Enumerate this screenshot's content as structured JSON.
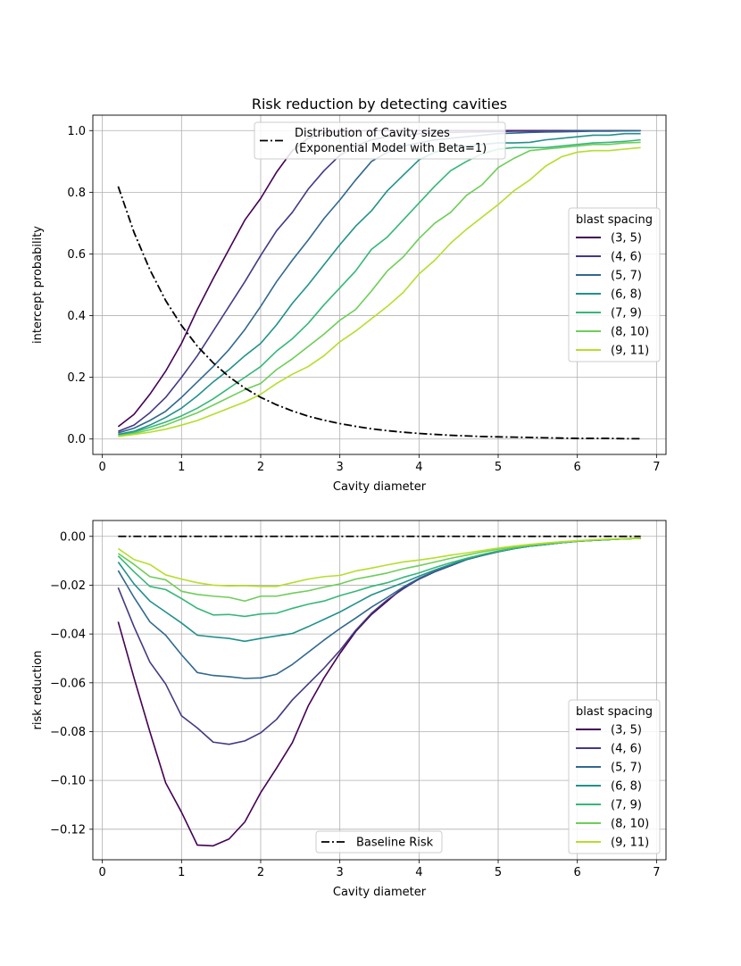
{
  "chart_data": [
    {
      "type": "line",
      "title": "Risk reduction by detecting cavities",
      "xlabel": "Cavity diameter",
      "ylabel": "intercept probability",
      "xlim": [
        -0.12,
        7.12
      ],
      "ylim": [
        -0.05,
        1.05
      ],
      "xticks": [
        "0",
        "1",
        "2",
        "3",
        "4",
        "5",
        "6",
        "7"
      ],
      "yticks": [
        "0.0",
        "0.2",
        "0.4",
        "0.6",
        "0.8",
        "1.0"
      ],
      "grid": true,
      "x": [
        0.2,
        0.4,
        0.6,
        0.8,
        1.0,
        1.2,
        1.4,
        1.6,
        1.8,
        2.0,
        2.2,
        2.4,
        2.6,
        2.8,
        3.0,
        3.2,
        3.4,
        3.6,
        3.8,
        4.0,
        4.2,
        4.4,
        4.6,
        4.8,
        5.0,
        5.2,
        5.4,
        5.6,
        5.8,
        6.0,
        6.2,
        6.4,
        6.6,
        6.8
      ],
      "legend_title": "blast spacing",
      "legend_position": "center-right",
      "overlay_legend": "upper-center",
      "series": [
        {
          "name": "(3, 5)",
          "color": "#440154",
          "values": [
            0.04,
            0.08,
            0.145,
            0.22,
            0.31,
            0.42,
            0.52,
            0.615,
            0.71,
            0.78,
            0.865,
            0.935,
            0.975,
            0.992,
            0.997,
            0.999,
            1.0,
            1.0,
            1.0,
            1.0,
            1.0,
            1.0,
            1.0,
            1.0,
            1.0,
            1.0,
            1.0,
            1.0,
            1.0,
            1.0,
            1.0,
            1.0,
            1.0,
            1.0
          ]
        },
        {
          "name": "(4, 6)",
          "color": "#443983",
          "values": [
            0.025,
            0.045,
            0.085,
            0.135,
            0.2,
            0.27,
            0.35,
            0.43,
            0.51,
            0.595,
            0.675,
            0.735,
            0.81,
            0.87,
            0.92,
            0.95,
            0.97,
            0.98,
            0.985,
            0.99,
            0.992,
            0.994,
            0.995,
            0.996,
            0.997,
            0.998,
            0.998,
            0.999,
            0.999,
            1.0,
            1.0,
            1.0,
            1.0,
            1.0
          ]
        },
        {
          "name": "(5, 7)",
          "color": "#31688e",
          "values": [
            0.02,
            0.035,
            0.06,
            0.09,
            0.135,
            0.185,
            0.235,
            0.29,
            0.355,
            0.43,
            0.51,
            0.58,
            0.645,
            0.715,
            0.775,
            0.84,
            0.9,
            0.93,
            0.95,
            0.96,
            0.97,
            0.975,
            0.98,
            0.985,
            0.99,
            0.992,
            0.994,
            0.995,
            0.996,
            0.997,
            0.998,
            0.998,
            0.999,
            1.0
          ]
        },
        {
          "name": "(6, 8)",
          "color": "#21918c",
          "values": [
            0.015,
            0.025,
            0.045,
            0.07,
            0.1,
            0.14,
            0.185,
            0.225,
            0.27,
            0.31,
            0.37,
            0.44,
            0.5,
            0.565,
            0.63,
            0.69,
            0.74,
            0.805,
            0.855,
            0.905,
            0.93,
            0.945,
            0.95,
            0.955,
            0.96,
            0.96,
            0.962,
            0.97,
            0.975,
            0.98,
            0.985,
            0.985,
            0.99,
            0.99
          ]
        },
        {
          "name": "(7, 9)",
          "color": "#35b779",
          "values": [
            0.01,
            0.022,
            0.038,
            0.055,
            0.075,
            0.1,
            0.13,
            0.165,
            0.2,
            0.235,
            0.285,
            0.325,
            0.375,
            0.435,
            0.49,
            0.545,
            0.615,
            0.655,
            0.71,
            0.765,
            0.82,
            0.87,
            0.9,
            0.925,
            0.94,
            0.945,
            0.945,
            0.945,
            0.95,
            0.955,
            0.96,
            0.962,
            0.965,
            0.97
          ]
        },
        {
          "name": "(8, 10)",
          "color": "#6ece58",
          "values": [
            0.01,
            0.018,
            0.03,
            0.045,
            0.065,
            0.085,
            0.11,
            0.135,
            0.16,
            0.18,
            0.225,
            0.26,
            0.3,
            0.34,
            0.385,
            0.42,
            0.48,
            0.545,
            0.59,
            0.65,
            0.7,
            0.735,
            0.79,
            0.825,
            0.88,
            0.91,
            0.935,
            0.94,
            0.945,
            0.95,
            0.955,
            0.955,
            0.96,
            0.962
          ]
        },
        {
          "name": "(9, 11)",
          "color": "#b5de2b",
          "values": [
            0.008,
            0.015,
            0.022,
            0.032,
            0.045,
            0.06,
            0.08,
            0.1,
            0.12,
            0.145,
            0.18,
            0.21,
            0.235,
            0.27,
            0.315,
            0.35,
            0.39,
            0.43,
            0.475,
            0.535,
            0.58,
            0.635,
            0.68,
            0.72,
            0.76,
            0.805,
            0.84,
            0.885,
            0.915,
            0.93,
            0.935,
            0.935,
            0.94,
            0.945
          ]
        }
      ],
      "overlay_series": [
        {
          "name": "Distribution of Cavity sizes",
          "name_line2": "(Exponential Model with Beta=1)",
          "color": "#000000",
          "style": "dashdot",
          "values": [
            0.819,
            0.67,
            0.549,
            0.449,
            0.368,
            0.301,
            0.247,
            0.202,
            0.165,
            0.135,
            0.111,
            0.091,
            0.074,
            0.061,
            0.05,
            0.041,
            0.033,
            0.027,
            0.022,
            0.018,
            0.015,
            0.012,
            0.01,
            0.008,
            0.007,
            0.006,
            0.005,
            0.004,
            0.003,
            0.002,
            0.002,
            0.002,
            0.001,
            0.001
          ]
        }
      ]
    },
    {
      "type": "line",
      "title": "",
      "xlabel": "Cavity diameter",
      "ylabel": "risk reduction",
      "xlim": [
        -0.12,
        7.12
      ],
      "ylim": [
        -0.1325,
        0.0065
      ],
      "xticks": [
        "0",
        "1",
        "2",
        "3",
        "4",
        "5",
        "6",
        "7"
      ],
      "yticks": [
        "0.00",
        "−0.02",
        "−0.04",
        "−0.06",
        "−0.08",
        "−0.10",
        "−0.12"
      ],
      "grid": true,
      "x": [
        0.2,
        0.4,
        0.6,
        0.8,
        1.0,
        1.2,
        1.4,
        1.6,
        1.8,
        2.0,
        2.2,
        2.4,
        2.6,
        2.8,
        3.0,
        3.2,
        3.4,
        3.6,
        3.8,
        4.0,
        4.2,
        4.4,
        4.6,
        4.8,
        5.0,
        5.2,
        5.4,
        5.6,
        5.8,
        6.0,
        6.2,
        6.4,
        6.6,
        6.8
      ],
      "legend_title": "blast spacing",
      "legend_position": "lower-right",
      "overlay_legend": "lower-center",
      "series": [
        {
          "name": "(3, 5)",
          "color": "#440154",
          "values": [
            -0.035,
            -0.058,
            -0.08,
            -0.101,
            -0.113,
            -0.1265,
            -0.1268,
            -0.124,
            -0.117,
            -0.105,
            -0.095,
            -0.0845,
            -0.0695,
            -0.058,
            -0.048,
            -0.039,
            -0.032,
            -0.0265,
            -0.021,
            -0.0175,
            -0.0145,
            -0.012,
            -0.0095,
            -0.0078,
            -0.0063,
            -0.005,
            -0.004,
            -0.0033,
            -0.0026,
            -0.002,
            -0.0016,
            -0.0013,
            -0.001,
            -0.0008
          ]
        },
        {
          "name": "(4, 6)",
          "color": "#443983",
          "values": [
            -0.021,
            -0.037,
            -0.0515,
            -0.0605,
            -0.0735,
            -0.0785,
            -0.0843,
            -0.0852,
            -0.0838,
            -0.0805,
            -0.075,
            -0.067,
            -0.0605,
            -0.054,
            -0.0468,
            -0.0385,
            -0.0315,
            -0.026,
            -0.0215,
            -0.0175,
            -0.0145,
            -0.012,
            -0.0095,
            -0.0078,
            -0.0063,
            -0.005,
            -0.004,
            -0.0033,
            -0.0026,
            -0.002,
            -0.0016,
            -0.0013,
            -0.001,
            -0.0008
          ]
        },
        {
          "name": "(5, 7)",
          "color": "#31688e",
          "values": [
            -0.014,
            -0.025,
            -0.035,
            -0.0405,
            -0.0485,
            -0.0558,
            -0.057,
            -0.0575,
            -0.0582,
            -0.058,
            -0.0565,
            -0.0525,
            -0.0475,
            -0.0425,
            -0.0378,
            -0.0335,
            -0.029,
            -0.025,
            -0.0208,
            -0.0172,
            -0.0143,
            -0.0118,
            -0.0095,
            -0.0078,
            -0.0063,
            -0.005,
            -0.004,
            -0.0033,
            -0.0026,
            -0.002,
            -0.0016,
            -0.0013,
            -0.001,
            -0.0008
          ]
        },
        {
          "name": "(6, 8)",
          "color": "#21918c",
          "values": [
            -0.0105,
            -0.0195,
            -0.0265,
            -0.031,
            -0.0355,
            -0.0405,
            -0.0412,
            -0.0418,
            -0.043,
            -0.0418,
            -0.0408,
            -0.0398,
            -0.037,
            -0.034,
            -0.031,
            -0.0275,
            -0.024,
            -0.0215,
            -0.019,
            -0.0163,
            -0.0138,
            -0.0115,
            -0.0093,
            -0.0076,
            -0.0062,
            -0.005,
            -0.004,
            -0.0033,
            -0.0026,
            -0.002,
            -0.0016,
            -0.0013,
            -0.001,
            -0.0008
          ]
        },
        {
          "name": "(7, 9)",
          "color": "#35b779",
          "values": [
            -0.008,
            -0.0145,
            -0.0205,
            -0.0218,
            -0.0255,
            -0.0295,
            -0.0322,
            -0.032,
            -0.0328,
            -0.0318,
            -0.0315,
            -0.0295,
            -0.0278,
            -0.0265,
            -0.0243,
            -0.0225,
            -0.0205,
            -0.019,
            -0.0168,
            -0.015,
            -0.0128,
            -0.0108,
            -0.009,
            -0.0074,
            -0.006,
            -0.0049,
            -0.0039,
            -0.0032,
            -0.0026,
            -0.002,
            -0.0016,
            -0.0013,
            -0.001,
            -0.0008
          ]
        },
        {
          "name": "(8, 10)",
          "color": "#6ece58",
          "values": [
            -0.007,
            -0.0115,
            -0.0165,
            -0.0178,
            -0.0225,
            -0.0238,
            -0.0245,
            -0.025,
            -0.0265,
            -0.0245,
            -0.0245,
            -0.0233,
            -0.0223,
            -0.0208,
            -0.0195,
            -0.0175,
            -0.0163,
            -0.015,
            -0.0133,
            -0.012,
            -0.0105,
            -0.009,
            -0.0077,
            -0.0064,
            -0.0053,
            -0.0044,
            -0.0036,
            -0.003,
            -0.0024,
            -0.0019,
            -0.0015,
            -0.0012,
            -0.001,
            -0.0008
          ]
        },
        {
          "name": "(9, 11)",
          "color": "#b5de2b",
          "values": [
            -0.005,
            -0.0095,
            -0.0115,
            -0.0158,
            -0.0175,
            -0.019,
            -0.02,
            -0.0203,
            -0.0202,
            -0.0205,
            -0.0205,
            -0.019,
            -0.0175,
            -0.0165,
            -0.016,
            -0.0142,
            -0.013,
            -0.0117,
            -0.0105,
            -0.0097,
            -0.0088,
            -0.0077,
            -0.0068,
            -0.0058,
            -0.0048,
            -0.004,
            -0.0033,
            -0.0027,
            -0.0022,
            -0.0018,
            -0.0014,
            -0.0011,
            -0.0009,
            -0.0007
          ]
        }
      ],
      "overlay_series": [
        {
          "name": "Baseline Risk",
          "color": "#000000",
          "style": "dashdot",
          "values": [
            0,
            0,
            0,
            0,
            0,
            0,
            0,
            0,
            0,
            0,
            0,
            0,
            0,
            0,
            0,
            0,
            0,
            0,
            0,
            0,
            0,
            0,
            0,
            0,
            0,
            0,
            0,
            0,
            0,
            0,
            0,
            0,
            0,
            0
          ]
        }
      ]
    }
  ]
}
